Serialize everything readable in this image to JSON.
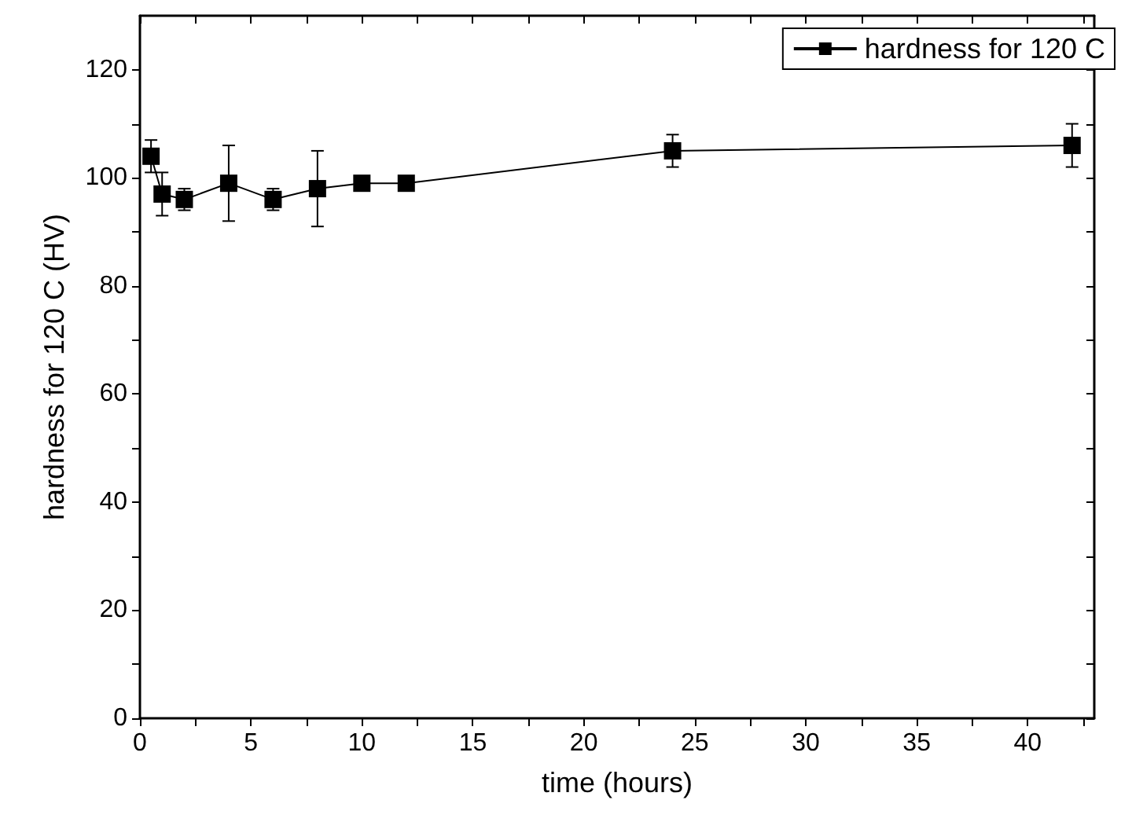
{
  "chart_data": {
    "type": "line",
    "xlabel": "time (hours)",
    "ylabel": "hardness for 120 C (HV)",
    "x": [
      0.5,
      1,
      2,
      4,
      6,
      8,
      10,
      12,
      24,
      42
    ],
    "series": [
      {
        "name": "hardness for 120 C",
        "color": "#000000",
        "values": [
          104,
          97,
          96,
          99,
          96,
          98,
          99,
          99,
          105,
          106
        ],
        "errors": [
          3,
          4,
          2,
          7,
          2,
          7,
          null,
          null,
          3,
          4
        ]
      }
    ],
    "xlim": [
      0,
      43
    ],
    "xticks": [
      0,
      {
        "value": 2.5,
        "label": null
      },
      5,
      {
        "value": 7.5,
        "label": null
      },
      10,
      {
        "value": 12.5,
        "label": null
      },
      15,
      {
        "value": 17.5,
        "label": null
      },
      20,
      {
        "value": 22.5,
        "label": null
      },
      25,
      {
        "value": 27.5,
        "label": null
      },
      30,
      {
        "value": 32.5,
        "label": null
      },
      35,
      {
        "value": 37.5,
        "label": null
      },
      40,
      {
        "value": 42.5,
        "label": null
      }
    ],
    "ylim": [
      0,
      130
    ],
    "yticks": [
      0,
      {
        "value": 10,
        "label": null
      },
      20,
      {
        "value": 30,
        "label": null
      },
      40,
      {
        "value": 50,
        "label": null
      },
      60,
      {
        "value": 70,
        "label": null
      },
      80,
      {
        "value": 90,
        "label": null
      },
      100,
      {
        "value": 110,
        "label": null
      },
      120
    ],
    "marker": "square",
    "line_style": "solid",
    "grid": false,
    "legend": "top right"
  }
}
